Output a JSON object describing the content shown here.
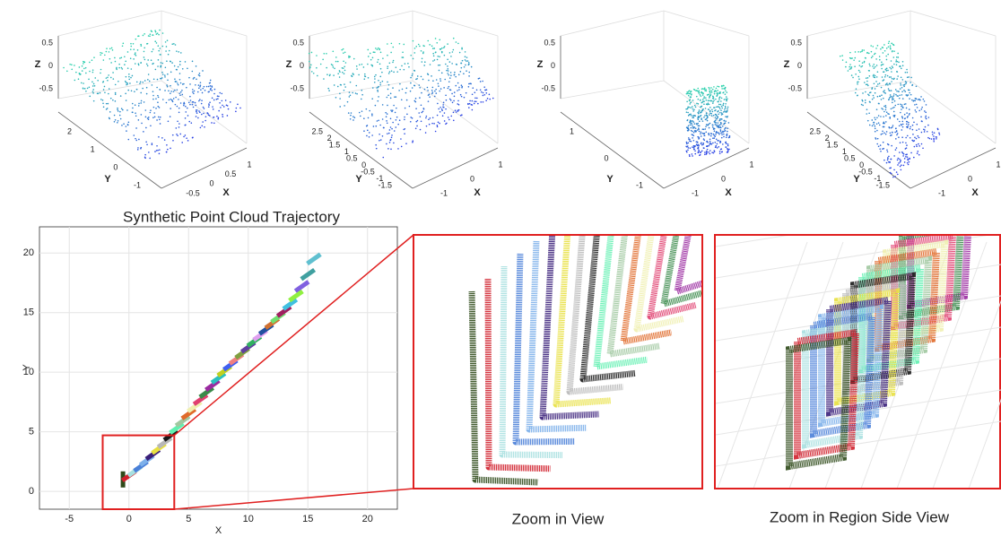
{
  "panels_3d": [
    {
      "zlabel": "Z",
      "ylabel": "Y",
      "xlabel": "X",
      "zticks": [
        0.5,
        0,
        -0.5
      ],
      "yticks": [
        2,
        1,
        0,
        -1
      ],
      "xticks": [
        -0.5,
        0,
        0.5,
        1
      ]
    },
    {
      "zlabel": "Z",
      "ylabel": "Y",
      "xlabel": "X",
      "zticks": [
        0.5,
        0,
        -0.5
      ],
      "yticks": [
        2.5,
        2,
        1.5,
        1,
        0.5,
        0,
        -0.5,
        -1,
        -1.5
      ],
      "xticks": [
        -1,
        0,
        1
      ]
    },
    {
      "zlabel": "Z",
      "ylabel": "Y",
      "xlabel": "X",
      "zticks": [
        0.5,
        0,
        -0.5
      ],
      "yticks": [
        1,
        0,
        -1
      ],
      "xticks": [
        -1,
        0,
        1
      ]
    },
    {
      "zlabel": "Z",
      "ylabel": "Y",
      "xlabel": "X",
      "zticks": [
        0.5,
        0,
        -0.5
      ],
      "yticks": [
        2.5,
        2,
        1.5,
        1,
        0.5,
        0,
        -0.5,
        -1,
        -1.5
      ],
      "xticks": [
        -1,
        0,
        1
      ]
    }
  ],
  "top_caption": "Synthetic Point Cloud Trajectory",
  "chart_data": {
    "type": "scatter",
    "xlabel": "X",
    "ylabel": "Y",
    "xlim": [
      -7.5,
      22.5
    ],
    "ylim": [
      -1.5,
      22.2
    ],
    "xticks": [
      -5,
      0,
      5,
      10,
      15,
      20
    ],
    "yticks": [
      0,
      5,
      10,
      15,
      20
    ],
    "grid": true,
    "x": [
      -0.5,
      0,
      0.5,
      1,
      1.5,
      2,
      2.5,
      3,
      3.5,
      4,
      4.5,
      5,
      5.5,
      6,
      6.5,
      7,
      7.5,
      8,
      8.5,
      9,
      9.5,
      10,
      10.5,
      11,
      11.5,
      12,
      12.5,
      13,
      13.5,
      14,
      14.5,
      15,
      15.5
    ],
    "values": [
      1,
      1.3,
      1.7,
      2.1,
      2.6,
      3.1,
      3.6,
      4.1,
      4.7,
      5.3,
      5.9,
      6.5,
      7.1,
      7.7,
      8.3,
      8.9,
      9.5,
      10.1,
      10.6,
      11.1,
      11.6,
      12.1,
      12.6,
      13.1,
      13.6,
      14.1,
      14.6,
      15.1,
      15.7,
      16.4,
      17.2,
      18.2,
      19.5
    ],
    "colors": [
      "#2f4a1a",
      "#d0202c",
      "#a8e0e0",
      "#4a80d8",
      "#7db0ea",
      "#3a1f7a",
      "#e8e040",
      "#b8b8b8",
      "#1a1a1a",
      "#60f0b0",
      "#a0c8a0",
      "#e06a2a",
      "#f0f0b0",
      "#e04070",
      "#3a8a4a",
      "#9a2aa0",
      "#2ac0c0",
      "#c0d020",
      "#4060f0",
      "#f08080",
      "#80a040",
      "#6040a0",
      "#30b060",
      "#e0a0f0",
      "#2050a0",
      "#d07030",
      "#70e070",
      "#a02060",
      "#40c0e0",
      "#90f040",
      "#8060e0",
      "#40a0a0",
      "#60c0d0"
    ],
    "highlight_xlim": [
      -2.2,
      3.8
    ],
    "highlight_ylim": [
      -1.5,
      4.7
    ]
  },
  "zoom_caption": "Zoom in View",
  "side_caption": "Zoom in Region Side View"
}
